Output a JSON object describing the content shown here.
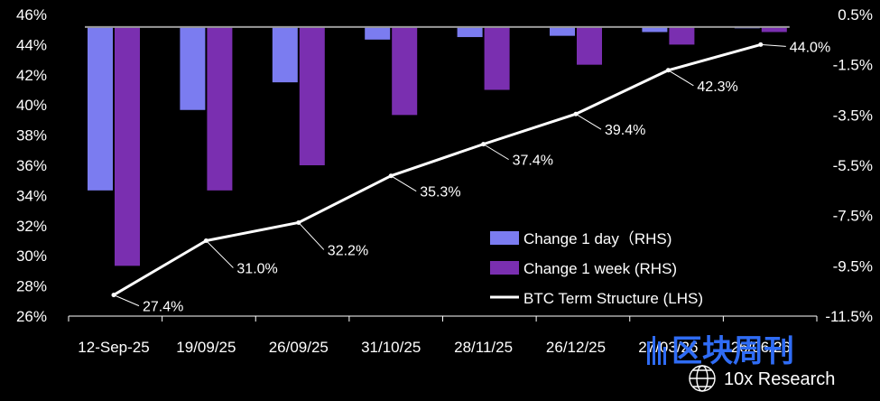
{
  "chart_data": {
    "type": "bar",
    "categories": [
      "12-Sep-25",
      "19/09/25",
      "26/09/25",
      "31/10/25",
      "28/11/25",
      "26/12/25",
      "27/03/26",
      "26/06/26"
    ],
    "series": [
      {
        "name": "Change 1 day（RHS)",
        "kind": "bar",
        "axis": "right",
        "color": "#7b7cf0",
        "values": [
          -6.5,
          -3.3,
          -2.2,
          -0.5,
          -0.4,
          -0.35,
          -0.2,
          -0.05
        ]
      },
      {
        "name": "Change 1 week (RHS)",
        "kind": "bar",
        "axis": "right",
        "color": "#7a2fb0",
        "values": [
          -9.5,
          -6.5,
          -5.5,
          -3.5,
          -2.5,
          -1.5,
          -0.7,
          -0.2
        ]
      },
      {
        "name": "BTC Term Structure (LHS)",
        "kind": "line",
        "axis": "left",
        "color": "#ffffff",
        "values": [
          27.4,
          31.0,
          32.2,
          35.3,
          37.4,
          39.4,
          42.3,
          44.0
        ],
        "labels": [
          "27.4%",
          "31.0%",
          "32.2%",
          "35.3%",
          "37.4%",
          "39.4%",
          "42.3%",
          "44.0%"
        ]
      }
    ],
    "left_axis": {
      "ylim": [
        26,
        46
      ],
      "ticks": [
        26,
        28,
        30,
        32,
        34,
        36,
        38,
        40,
        42,
        44,
        46
      ],
      "tick_labels": [
        "26%",
        "28%",
        "30%",
        "32%",
        "34%",
        "36%",
        "38%",
        "40%",
        "42%",
        "44%",
        "46%"
      ]
    },
    "right_axis": {
      "ylim": [
        -11.5,
        0.5
      ],
      "ticks": [
        -11.5,
        -9.5,
        -7.5,
        -5.5,
        -3.5,
        -1.5,
        0.5
      ],
      "tick_labels": [
        "-11.5%",
        "-9.5%",
        "-7.5%",
        "-5.5%",
        "-3.5%",
        "-1.5%",
        "0.5%"
      ]
    },
    "grid": false,
    "legend_position": "bottom-right",
    "background": "#000000",
    "zero_line_color": "#9a9a9a"
  },
  "watermark": {
    "text": "区块周刊"
  },
  "brand": {
    "text": "10x Research"
  }
}
